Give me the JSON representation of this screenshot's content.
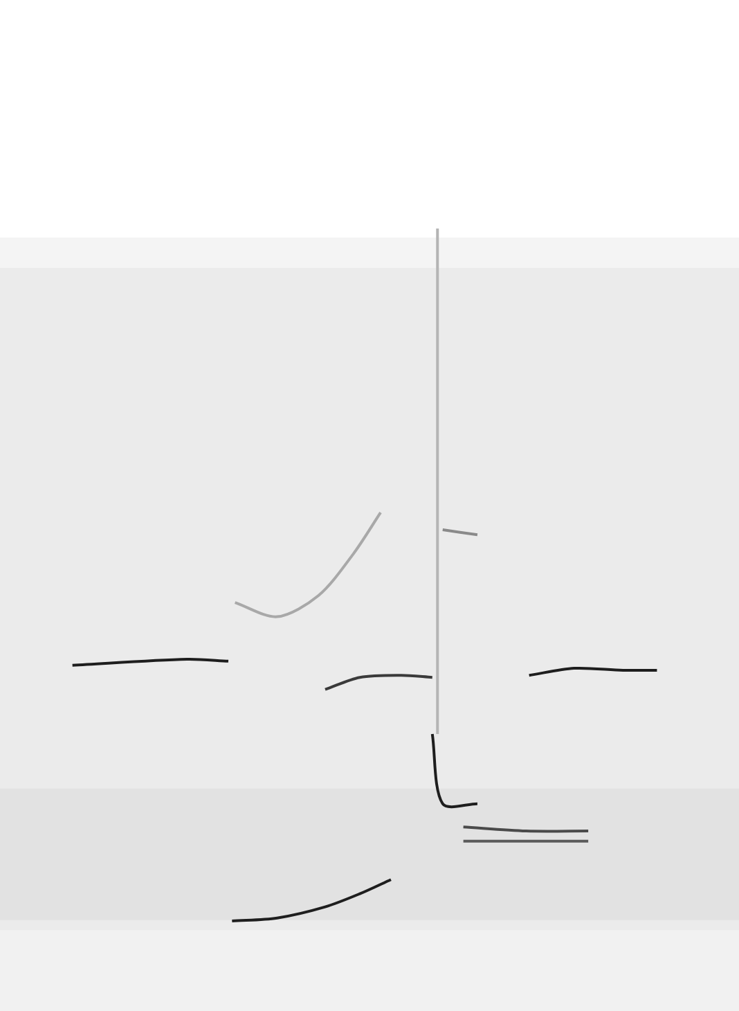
{
  "chart_data": {
    "type": "line",
    "xlim": [
      0,
      100
    ],
    "ylim": [
      0,
      100
    ],
    "grid": false,
    "tick_labels": false,
    "line_style": "solid",
    "series": [
      {
        "color": "#1e1e1e",
        "x": [
          9.8,
          25.3,
          30.9
        ],
        "values": [
          34.2,
          34.8,
          34.6
        ]
      },
      {
        "color": "#1e1e1e",
        "x": [
          31.4,
          37.5,
          44.0,
          48.7,
          52.9
        ],
        "values": [
          8.9,
          9.2,
          10.3,
          11.6,
          13.0
        ]
      },
      {
        "color": "#3a3a3a",
        "x": [
          44.0,
          48.7,
          54.3,
          58.5
        ],
        "values": [
          31.8,
          33.0,
          33.2,
          33.0
        ]
      },
      {
        "color": "#a8a8a8",
        "x": [
          31.8,
          37.5,
          43.1,
          47.8,
          51.5
        ],
        "values": [
          40.4,
          39.0,
          41.1,
          45.2,
          49.3
        ]
      },
      {
        "color": "#b4b4b4",
        "x": [
          59.2,
          59.2
        ],
        "values": [
          77.4,
          27.4
        ]
      },
      {
        "color": "#1e1e1e",
        "x": [
          58.5,
          59.9,
          64.6
        ],
        "values": [
          27.4,
          20.5,
          20.5
        ]
      },
      {
        "color": "#4a4a4a",
        "x": [
          62.7,
          71.2,
          79.6
        ],
        "values": [
          18.2,
          17.8,
          17.8
        ]
      },
      {
        "color": "#5a5a5a",
        "x": [
          62.7,
          79.6
        ],
        "values": [
          16.8,
          16.8
        ]
      },
      {
        "color": "#1e1e1e",
        "x": [
          71.6,
          77.7,
          84.3,
          88.9
        ],
        "values": [
          33.2,
          33.9,
          33.7,
          33.7
        ]
      },
      {
        "color": "#8a8a8a",
        "x": [
          59.9,
          64.6
        ],
        "values": [
          47.6,
          47.1
        ]
      }
    ]
  }
}
